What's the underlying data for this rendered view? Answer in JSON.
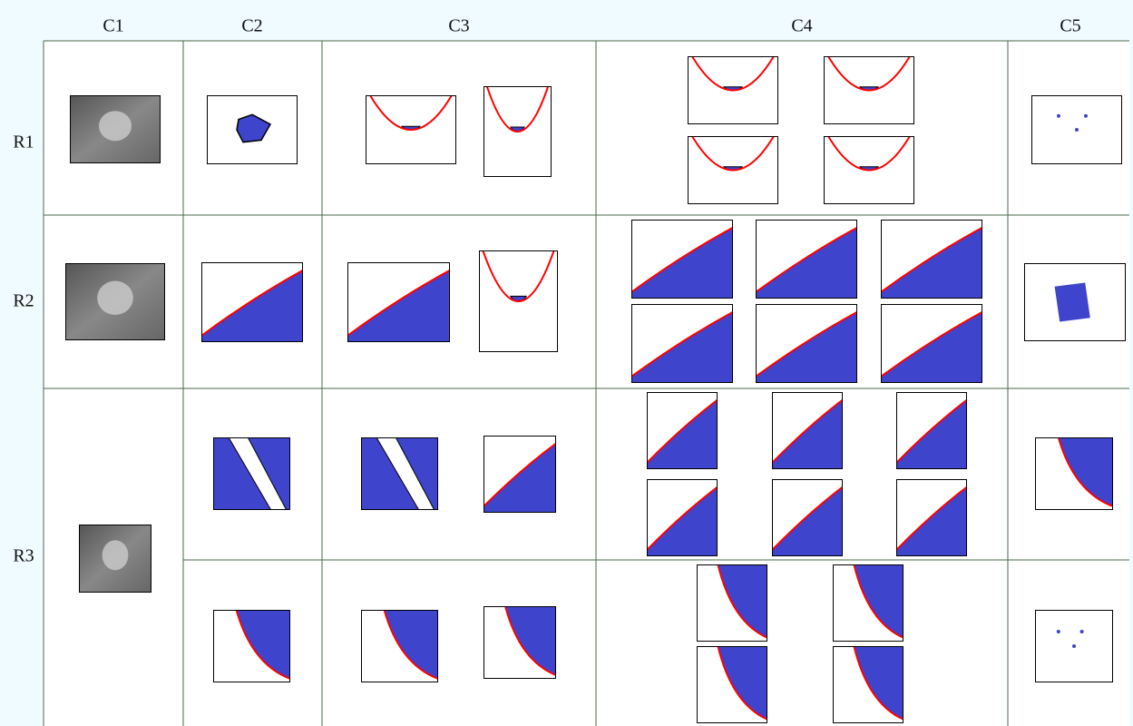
{
  "header": {
    "columns": [
      "C1",
      "C2",
      "C3",
      "C4",
      "C5"
    ]
  },
  "rows": [
    "R1",
    "R2",
    "R3"
  ]
}
